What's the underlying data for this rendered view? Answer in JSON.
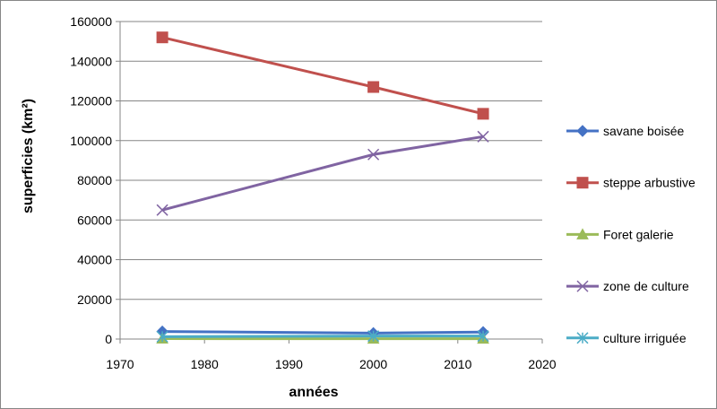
{
  "chart_data": {
    "type": "line",
    "title": "",
    "xlabel": "années",
    "ylabel": "superficies  (km²)",
    "xlim": [
      1970,
      2020
    ],
    "ylim": [
      0,
      160000
    ],
    "x_ticks": [
      "1970",
      "1980",
      "1990",
      "2000",
      "2010",
      "2020"
    ],
    "y_ticks": [
      "0",
      "20000",
      "40000",
      "60000",
      "80000",
      "100000",
      "120000",
      "140000",
      "160000"
    ],
    "grid": "horizontal",
    "legend_position": "right",
    "x": [
      1975,
      2000,
      2013
    ],
    "series": [
      {
        "name": "savane boisée",
        "values": [
          3800,
          3000,
          3500
        ],
        "color": "#4472C4",
        "marker": "diamond"
      },
      {
        "name": "steppe arbustive",
        "values": [
          152000,
          127000,
          113500
        ],
        "color": "#C0504D",
        "marker": "square"
      },
      {
        "name": "Foret galerie",
        "values": [
          200,
          150,
          150
        ],
        "color": "#9BBB59",
        "marker": "triangle"
      },
      {
        "name": "zone de culture",
        "values": [
          65000,
          93000,
          102000
        ],
        "color": "#8064A2",
        "marker": "x"
      },
      {
        "name": "culture irriguée",
        "values": [
          1200,
          1500,
          1500
        ],
        "color": "#4BACC6",
        "marker": "star"
      }
    ]
  }
}
